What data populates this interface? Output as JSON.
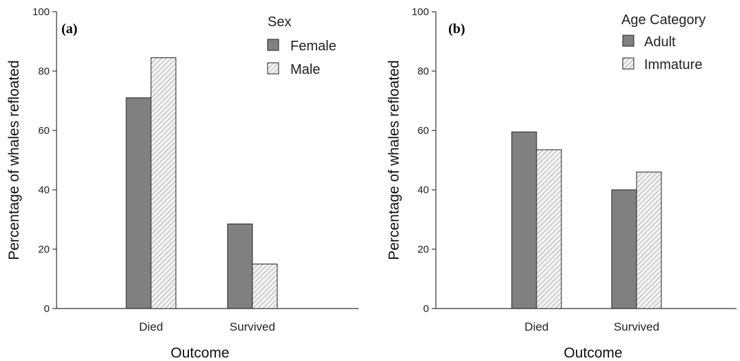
{
  "chart_data": [
    {
      "type": "bar",
      "panel_label": "(a)",
      "categories": [
        "Died",
        "Survived"
      ],
      "series": [
        {
          "name": "Female",
          "values": [
            71,
            28.5
          ]
        },
        {
          "name": "Male",
          "values": [
            84.5,
            15
          ]
        }
      ],
      "legend_title": "Sex",
      "xlabel": "Outcome",
      "ylabel": "Percentage of whales refloated",
      "ylim": [
        0,
        100
      ],
      "yticks": [
        "0",
        "20",
        "40",
        "60",
        "80",
        "100"
      ],
      "grid": false,
      "legend_position": "top-right"
    },
    {
      "type": "bar",
      "panel_label": "(b)",
      "categories": [
        "Died",
        "Survived"
      ],
      "series": [
        {
          "name": "Adult",
          "values": [
            59.5,
            40
          ]
        },
        {
          "name": "Immature",
          "values": [
            53.5,
            46
          ]
        }
      ],
      "legend_title": "Age Category",
      "xlabel": "Outcome",
      "ylabel": "Percentage of whales refloated",
      "ylim": [
        0,
        100
      ],
      "yticks": [
        "0",
        "20",
        "40",
        "60",
        "80",
        "100"
      ],
      "grid": false,
      "legend_position": "top-right"
    }
  ],
  "colors": {
    "solid_fill": "#808080",
    "hatch_background": "#f2f2f2",
    "hatch_line": "#8a8a8a",
    "bar_stroke": "#222222",
    "axis": "#333333"
  }
}
